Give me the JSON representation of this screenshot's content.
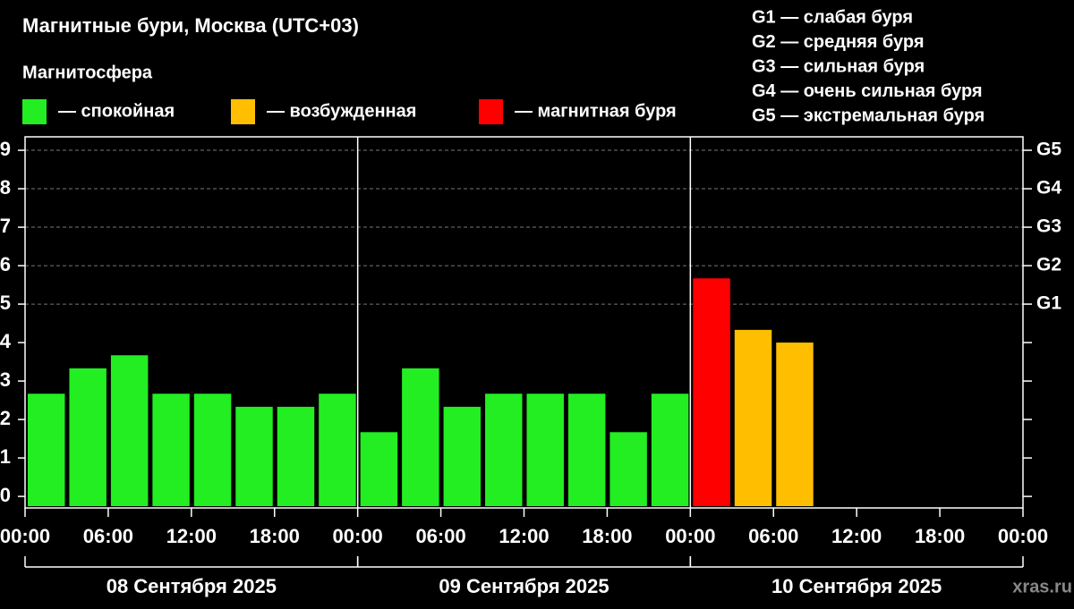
{
  "chart_data": {
    "type": "bar",
    "title": "Магнитные бури, Москва (UTC+03)",
    "legend_title": "Магнитосфера",
    "legend": [
      {
        "label": "— спокойная",
        "color": "#22ee22"
      },
      {
        "label": "— возбужденная",
        "color": "#ffbf00"
      },
      {
        "label": "— магнитная буря",
        "color": "#ff0000"
      }
    ],
    "storm_scale": [
      "G1 — слабая буря",
      "G2 — средняя буря",
      "G3 — сильная буря",
      "G4 — очень сильная буря",
      "G5 — экстремальная буря"
    ],
    "x": [
      0,
      3,
      6,
      9,
      12,
      15,
      18,
      21,
      24,
      27,
      30,
      33,
      36,
      39,
      42,
      45,
      48,
      51,
      54,
      57,
      60,
      63,
      66,
      69
    ],
    "values": [
      2.67,
      3.33,
      3.67,
      2.67,
      2.67,
      2.33,
      2.33,
      2.67,
      1.67,
      3.33,
      2.33,
      2.67,
      2.67,
      2.67,
      1.67,
      2.67,
      5.67,
      4.33,
      4.0,
      null,
      null,
      null,
      null,
      null
    ],
    "colors": [
      "#22ee22",
      "#22ee22",
      "#22ee22",
      "#22ee22",
      "#22ee22",
      "#22ee22",
      "#22ee22",
      "#22ee22",
      "#22ee22",
      "#22ee22",
      "#22ee22",
      "#22ee22",
      "#22ee22",
      "#22ee22",
      "#22ee22",
      "#22ee22",
      "#ff0000",
      "#ffbf00",
      "#ffbf00",
      null,
      null,
      null,
      null,
      null
    ],
    "xlim": [
      0,
      72
    ],
    "xticks": [
      {
        "value": 0,
        "label": "00:00"
      },
      {
        "value": 6,
        "label": "06:00"
      },
      {
        "value": 12,
        "label": "12:00"
      },
      {
        "value": 18,
        "label": "18:00"
      },
      {
        "value": 24,
        "label": "00:00"
      },
      {
        "value": 30,
        "label": "06:00"
      },
      {
        "value": 36,
        "label": "12:00"
      },
      {
        "value": 42,
        "label": "18:00"
      },
      {
        "value": 48,
        "label": "00:00"
      },
      {
        "value": 54,
        "label": "06:00"
      },
      {
        "value": 60,
        "label": "12:00"
      },
      {
        "value": 66,
        "label": "18:00"
      },
      {
        "value": 72,
        "label": "00:00"
      }
    ],
    "ylim": [
      -0.3,
      9.35
    ],
    "yticks": [
      0,
      1,
      2,
      3,
      4,
      5,
      6,
      7,
      8,
      9
    ],
    "y2ticks": [
      {
        "value": 5,
        "label": "G1"
      },
      {
        "value": 6,
        "label": "G2"
      },
      {
        "value": 7,
        "label": "G3"
      },
      {
        "value": 8,
        "label": "G4"
      },
      {
        "value": 9,
        "label": "G5"
      }
    ],
    "grid": true,
    "days": [
      {
        "label": "08 Сентября 2025",
        "range": [
          0,
          24
        ]
      },
      {
        "label": "09 Сентября 2025",
        "range": [
          24,
          48
        ]
      },
      {
        "label": "10 Сентября 2025",
        "range": [
          48,
          72
        ]
      }
    ],
    "watermark": "xras.ru"
  }
}
